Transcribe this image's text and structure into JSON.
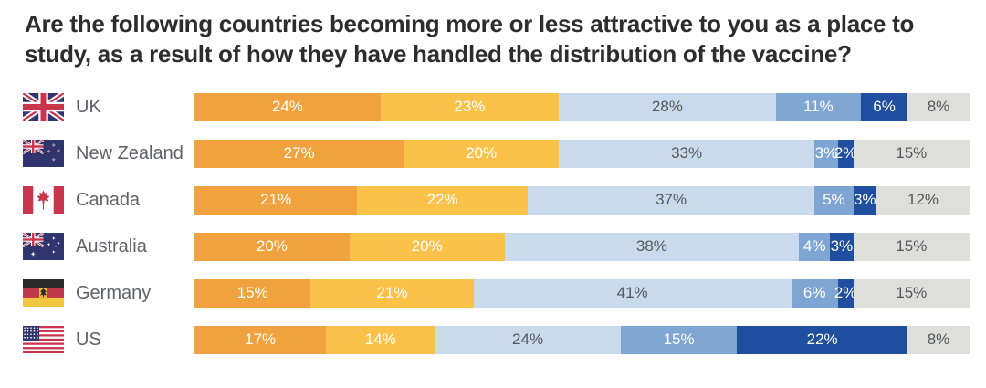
{
  "title": "Are the following countries becoming more or less attractive to you as a place to study, as a result of how they have handled the distribution of the vaccine?",
  "styles": {
    "title_color": "#2D2D2D",
    "country_label_color": "#5F6368",
    "background": "#FFFFFF",
    "label_on_dark": "#FFFFFF",
    "label_on_light": "#54585D"
  },
  "chart_data": {
    "type": "bar",
    "stacked": true,
    "orientation": "horizontal",
    "unit": "%",
    "grid": false,
    "legend": "none",
    "categories": [
      "UK",
      "New Zealand",
      "Canada",
      "Australia",
      "Germany",
      "US"
    ],
    "flag_icons": [
      "uk-flag-icon",
      "new-zealand-flag-icon",
      "canada-flag-icon",
      "australia-flag-icon",
      "germany-flag-icon",
      "us-flag-icon"
    ],
    "series": [
      {
        "name": "segment-orange",
        "color": "#F0A23F",
        "text_color": "#FFFFFF",
        "values": [
          24,
          27,
          21,
          20,
          15,
          17
        ]
      },
      {
        "name": "segment-amber",
        "color": "#FBC24A",
        "text_color": "#FFFFFF",
        "values": [
          23,
          20,
          22,
          20,
          21,
          14
        ]
      },
      {
        "name": "segment-light-blue",
        "color": "#C9DAED",
        "text_color": "#54585D",
        "values": [
          28,
          33,
          37,
          38,
          41,
          24
        ]
      },
      {
        "name": "segment-medium-blue",
        "color": "#7FA6D3",
        "text_color": "#FFFFFF",
        "values": [
          11,
          3,
          5,
          4,
          6,
          15
        ]
      },
      {
        "name": "segment-dark-blue",
        "color": "#1F4F9E",
        "text_color": "#FFFFFF",
        "values": [
          6,
          2,
          3,
          3,
          2,
          22
        ]
      },
      {
        "name": "segment-gray",
        "color": "#DEDEDB",
        "text_color": "#54585D",
        "values": [
          8,
          15,
          12,
          15,
          15,
          8
        ]
      }
    ]
  }
}
